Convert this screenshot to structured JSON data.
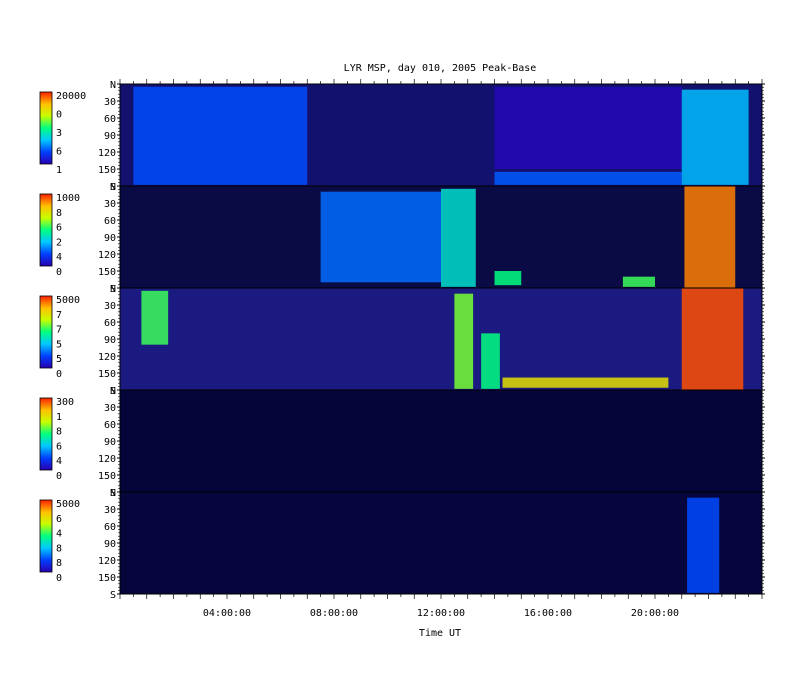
{
  "chart_data": {
    "type": "heatmap",
    "title": "LYR MSP, day 010, 2005 Peak-Base",
    "xlabel": "Time UT",
    "x_ticks": [
      "04:00:00",
      "08:00:00",
      "12:00:00",
      "16:00:00",
      "20:00:00"
    ],
    "x_range_hours": [
      0,
      24
    ],
    "y_tick_labels": [
      "N",
      "30",
      "60",
      "90",
      "120",
      "150",
      "S"
    ],
    "y_range_deg": [
      0,
      180
    ],
    "colormap": [
      "#2a00b0",
      "#0040ff",
      "#00c8ff",
      "#00ff80",
      "#c8ff00",
      "#ffc000",
      "#ff2000"
    ],
    "panels": [
      {
        "colorbar_labels": [
          "20000",
          "0",
          "3",
          "6",
          "1"
        ],
        "background": "#12126e",
        "features": [
          {
            "t0": 0.5,
            "t1": 7.0,
            "y0": 5,
            "y1": 178,
            "level": 0.18
          },
          {
            "t0": 14.0,
            "t1": 21.0,
            "y0": 5,
            "y1": 150,
            "level": 0.02
          },
          {
            "t0": 14.0,
            "t1": 21.0,
            "y0": 155,
            "y1": 178,
            "level": 0.2
          },
          {
            "t0": 21.0,
            "t1": 23.5,
            "y0": 10,
            "y1": 178,
            "level": 0.32
          }
        ]
      },
      {
        "colorbar_labels": [
          "1000",
          "8",
          "6",
          "2",
          "4",
          "0"
        ],
        "background": "#0a0a45",
        "features": [
          {
            "t0": 7.5,
            "t1": 12.0,
            "y0": 10,
            "y1": 170,
            "level": 0.22
          },
          {
            "t0": 12.0,
            "t1": 13.3,
            "y0": 5,
            "y1": 178,
            "level": 0.4
          },
          {
            "t0": 14.0,
            "t1": 15.0,
            "y0": 150,
            "y1": 175,
            "level": 0.5
          },
          {
            "t0": 18.8,
            "t1": 20.0,
            "y0": 160,
            "y1": 178,
            "level": 0.55
          },
          {
            "t0": 21.1,
            "t1": 23.0,
            "y0": 0,
            "y1": 180,
            "level": 0.9
          }
        ]
      },
      {
        "colorbar_labels": [
          "5000",
          "7",
          "7",
          "5",
          "5",
          "0"
        ],
        "background": "#1a1a80",
        "features": [
          {
            "t0": 0.8,
            "t1": 1.8,
            "y0": 5,
            "y1": 100,
            "level": 0.55
          },
          {
            "t0": 12.5,
            "t1": 13.2,
            "y0": 10,
            "y1": 178,
            "level": 0.6
          },
          {
            "t0": 13.5,
            "t1": 14.2,
            "y0": 80,
            "y1": 178,
            "level": 0.5
          },
          {
            "t0": 14.3,
            "t1": 20.5,
            "y0": 158,
            "y1": 176,
            "level": 0.75
          },
          {
            "t0": 21.0,
            "t1": 23.3,
            "y0": 0,
            "y1": 180,
            "level": 0.95
          }
        ]
      },
      {
        "colorbar_labels": [
          "300",
          "1",
          "8",
          "6",
          "4",
          "0"
        ],
        "background": "#05053a",
        "features": []
      },
      {
        "colorbar_labels": [
          "5000",
          "6",
          "4",
          "8",
          "8",
          "0"
        ],
        "background": "#06063c",
        "features": [
          {
            "t0": 21.2,
            "t1": 22.4,
            "y0": 10,
            "y1": 178,
            "level": 0.18
          }
        ]
      }
    ]
  }
}
